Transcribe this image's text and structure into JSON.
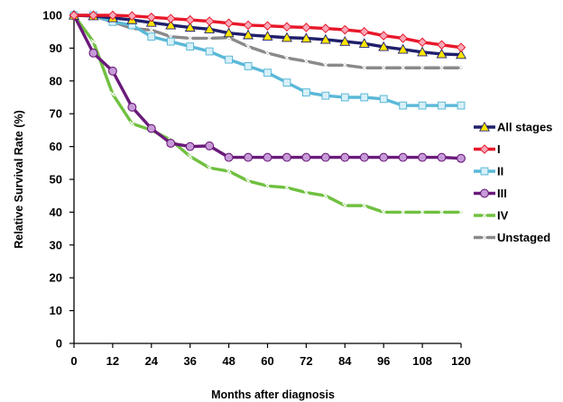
{
  "chart_data": {
    "type": "line",
    "title": "",
    "xlabel": "Months after diagnosis",
    "ylabel": "Relative Survival Rate (%)",
    "xlim": [
      0,
      120
    ],
    "ylim": [
      0,
      100
    ],
    "x_ticks": [
      "0",
      "12",
      "24",
      "36",
      "48",
      "60",
      "72",
      "84",
      "96",
      "108",
      "120"
    ],
    "y_ticks": [
      "0",
      "10",
      "20",
      "30",
      "40",
      "50",
      "60",
      "70",
      "80",
      "90",
      "100"
    ],
    "grid": false,
    "legend_position": "right",
    "x": [
      0,
      6,
      12,
      18,
      24,
      30,
      36,
      42,
      48,
      54,
      60,
      66,
      72,
      78,
      84,
      90,
      96,
      102,
      108,
      114,
      120
    ],
    "series": [
      {
        "name": "All stages",
        "color": "#1f1f6b",
        "marker": "triangle",
        "marker_color": "#ffe600",
        "values": [
          100,
          99.8,
          99.2,
          98.6,
          97.8,
          97,
          96.3,
          95.8,
          94.6,
          94,
          93.6,
          93.2,
          93,
          92.6,
          92,
          91.4,
          90.4,
          89.6,
          88.8,
          88.2,
          88
        ]
      },
      {
        "name": "I",
        "color": "#e8182a",
        "marker": "diamond",
        "marker_color": "#f7a8b8",
        "values": [
          100,
          100,
          100,
          99.8,
          99.4,
          99,
          98.6,
          98.2,
          97.6,
          97,
          96.8,
          96.5,
          96.3,
          96,
          95.6,
          95,
          93.8,
          93,
          91.8,
          91,
          90.2
        ]
      },
      {
        "name": "II",
        "color": "#5ab8d8",
        "marker": "square",
        "marker_color": "#d8f0f8",
        "values": [
          100,
          100,
          98,
          97,
          93.5,
          92,
          90.5,
          89,
          86.5,
          84.5,
          82.5,
          79.5,
          76.5,
          75.5,
          75,
          75,
          74.5,
          72.5,
          72.5,
          72.5,
          72.5
        ]
      },
      {
        "name": "III",
        "color": "#6a1a7a",
        "marker": "circle",
        "marker_color": "#c79ad8",
        "values": [
          100,
          88.5,
          83,
          72,
          65.5,
          61,
          60,
          60.2,
          56.7,
          56.7,
          56.7,
          56.7,
          56.7,
          56.7,
          56.7,
          56.7,
          56.7,
          56.7,
          56.7,
          56.7,
          56.4
        ]
      },
      {
        "name": "IV",
        "color": "#70c040",
        "marker": "x",
        "marker_color": "#ffffff",
        "values": [
          100,
          92,
          76,
          67,
          65,
          62,
          57,
          53.5,
          52.5,
          49.5,
          48,
          47.5,
          46,
          45,
          42,
          42,
          40,
          40,
          40,
          40,
          40
        ]
      },
      {
        "name": "Unstaged",
        "color": "#8a8a8a",
        "marker": "x",
        "marker_color": "#ffffff",
        "values": [
          100,
          99.8,
          98,
          96,
          95.5,
          93.5,
          93,
          93,
          93.2,
          90.5,
          88.5,
          87,
          86,
          84.8,
          84.8,
          84,
          84,
          84,
          84,
          84,
          84
        ]
      }
    ]
  }
}
